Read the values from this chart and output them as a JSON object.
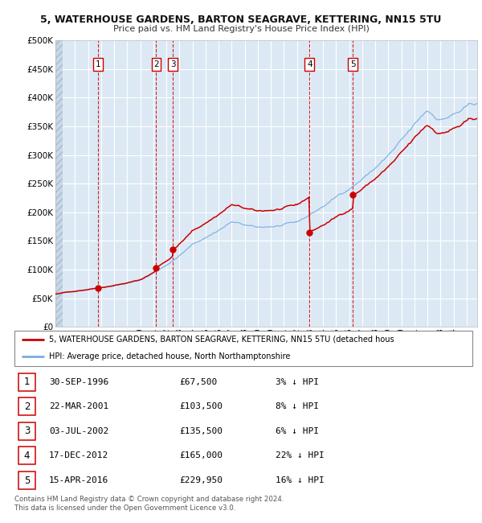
{
  "title1": "5, WATERHOUSE GARDENS, BARTON SEAGRAVE, KETTERING, NN15 5TU",
  "title2": "Price paid vs. HM Land Registry's House Price Index (HPI)",
  "hpi_color": "#7aade0",
  "price_color": "#cc0000",
  "bg_color": "#dce9f5",
  "plot_bg": "#dce9f5",
  "grid_color": "#ffffff",
  "purchases": [
    {
      "date_num": 1996.75,
      "price": 67500,
      "label": "1"
    },
    {
      "date_num": 2001.22,
      "price": 103500,
      "label": "2"
    },
    {
      "date_num": 2002.5,
      "price": 135500,
      "label": "3"
    },
    {
      "date_num": 2012.96,
      "price": 165000,
      "label": "4"
    },
    {
      "date_num": 2016.28,
      "price": 229950,
      "label": "5"
    }
  ],
  "legend_property": "5, WATERHOUSE GARDENS, BARTON SEAGRAVE, KETTERING, NN15 5TU (detached hous",
  "legend_hpi": "HPI: Average price, detached house, North Northamptonshire",
  "table_rows": [
    {
      "num": "1",
      "date": "30-SEP-1996",
      "price": "£67,500",
      "hpi": "3% ↓ HPI"
    },
    {
      "num": "2",
      "date": "22-MAR-2001",
      "price": "£103,500",
      "hpi": "8% ↓ HPI"
    },
    {
      "num": "3",
      "date": "03-JUL-2002",
      "price": "£135,500",
      "hpi": "6% ↓ HPI"
    },
    {
      "num": "4",
      "date": "17-DEC-2012",
      "price": "£165,000",
      "hpi": "22% ↓ HPI"
    },
    {
      "num": "5",
      "date": "15-APR-2016",
      "price": "£229,950",
      "hpi": "16% ↓ HPI"
    }
  ],
  "footer": "Contains HM Land Registry data © Crown copyright and database right 2024.\nThis data is licensed under the Open Government Licence v3.0.",
  "xlim": [
    1993.5,
    2025.8
  ],
  "ylim": [
    0,
    500000
  ],
  "yticks": [
    0,
    50000,
    100000,
    150000,
    200000,
    250000,
    300000,
    350000,
    400000,
    450000,
    500000
  ]
}
